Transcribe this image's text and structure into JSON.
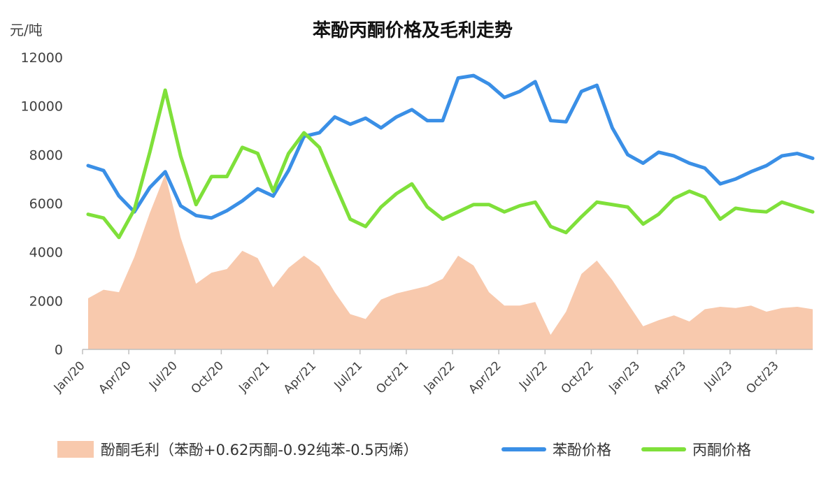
{
  "chart_data": {
    "type": "line",
    "title": "苯酚丙酮价格及毛利走势",
    "ylabel": "元/吨",
    "ylim": [
      0,
      12000
    ],
    "yticks": [
      "0",
      "2000",
      "4000",
      "6000",
      "8000",
      "10000",
      "12000"
    ],
    "grid": false,
    "legend_position": "bottom",
    "colors": {
      "margin": "#f8c9ad",
      "phenol": "#3a8fe6",
      "acetone": "#7fe03a"
    },
    "x": [
      "2020-01",
      "2020-02",
      "2020-03",
      "2020-04",
      "2020-05",
      "2020-06",
      "2020-07",
      "2020-08",
      "2020-09",
      "2020-10",
      "2020-11",
      "2020-12",
      "2021-01",
      "2021-02",
      "2021-03",
      "2021-04",
      "2021-05",
      "2021-06",
      "2021-07",
      "2021-08",
      "2021-09",
      "2021-10",
      "2021-11",
      "2021-12",
      "2022-01",
      "2022-02",
      "2022-03",
      "2022-04",
      "2022-05",
      "2022-06",
      "2022-07",
      "2022-08",
      "2022-09",
      "2022-10",
      "2022-11",
      "2022-12",
      "2023-01",
      "2023-02",
      "2023-03",
      "2023-04",
      "2023-05",
      "2023-06",
      "2023-07",
      "2023-08",
      "2023-09",
      "2023-10",
      "2023-11",
      "2023-12"
    ],
    "xtick_labels": [
      "Jan/20",
      "Apr/20",
      "Jul/20",
      "Oct/20",
      "Jan/21",
      "Apr/21",
      "Jul/21",
      "Oct/21",
      "Jan/22",
      "Apr/22",
      "Jul/22",
      "Oct/22",
      "Jan/23",
      "Apr/23",
      "Jul/23",
      "Oct/23"
    ],
    "series": [
      {
        "name": "酚酮毛利（苯酚+0.62丙酮-0.92纯苯-0.5丙烯）",
        "type": "area",
        "values": [
          2100,
          2450,
          2350,
          3800,
          5600,
          7200,
          4600,
          2700,
          3150,
          3300,
          4050,
          3750,
          2550,
          3350,
          3850,
          3400,
          2350,
          1450,
          1250,
          2050,
          2300,
          2450,
          2600,
          2900,
          3850,
          3450,
          2350,
          1800,
          1800,
          1950,
          600,
          1550,
          3100,
          3650,
          2850,
          1900,
          950,
          1200,
          1400,
          1150,
          1650,
          1750,
          1700,
          1800,
          1550,
          1700,
          1750,
          1650
        ]
      },
      {
        "name": "苯酚价格",
        "type": "line",
        "values": [
          7550,
          7350,
          6300,
          5650,
          6650,
          7300,
          5900,
          5500,
          5400,
          5700,
          6100,
          6600,
          6300,
          7350,
          8750,
          8900,
          9550,
          9250,
          9500,
          9100,
          9550,
          9850,
          9400,
          9400,
          11150,
          11250,
          10900,
          10350,
          10600,
          11000,
          9400,
          9350,
          10600,
          10850,
          9100,
          8000,
          7650,
          8100,
          7950,
          7650,
          7450,
          6800,
          7000,
          7300,
          7550,
          7950,
          8050,
          7850
        ]
      },
      {
        "name": "丙酮价格",
        "type": "line",
        "values": [
          5550,
          5400,
          4600,
          5750,
          8100,
          10650,
          7950,
          5950,
          7100,
          7100,
          8300,
          8050,
          6500,
          8050,
          8900,
          8300,
          6800,
          5350,
          5050,
          5850,
          6400,
          6800,
          5850,
          5350,
          5650,
          5950,
          5950,
          5650,
          5900,
          6050,
          5050,
          4800,
          5450,
          6050,
          5950,
          5850,
          5150,
          5550,
          6200,
          6500,
          6250,
          5350,
          5800,
          5700,
          5650,
          6050,
          5850,
          5650
        ]
      }
    ]
  }
}
